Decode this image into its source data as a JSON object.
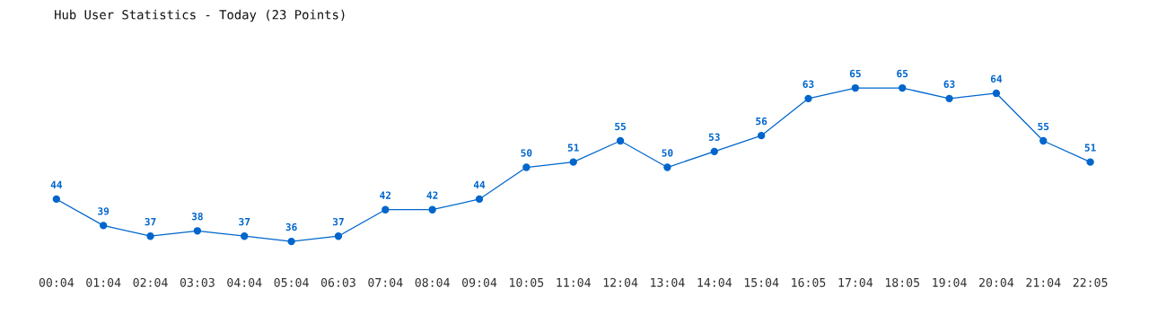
{
  "chart_data": {
    "type": "line",
    "title": "Hub User Statistics - Today (23 Points)",
    "categories": [
      "00:04",
      "01:04",
      "02:04",
      "03:03",
      "04:04",
      "05:04",
      "06:03",
      "07:04",
      "08:04",
      "09:04",
      "10:05",
      "11:04",
      "12:04",
      "13:04",
      "14:04",
      "15:04",
      "16:05",
      "17:04",
      "18:05",
      "19:04",
      "20:04",
      "21:04",
      "22:05"
    ],
    "series": [
      {
        "color": "#0066cc",
        "values": [
          44,
          39,
          37,
          38,
          37,
          36,
          37,
          42,
          42,
          44,
          50,
          51,
          55,
          50,
          53,
          56,
          63,
          65,
          65,
          63,
          64,
          55,
          51
        ]
      }
    ],
    "data_labels": true,
    "marker": "circle",
    "line_style": "solid",
    "grid": false,
    "legend": false,
    "tick_labels": "x"
  }
}
